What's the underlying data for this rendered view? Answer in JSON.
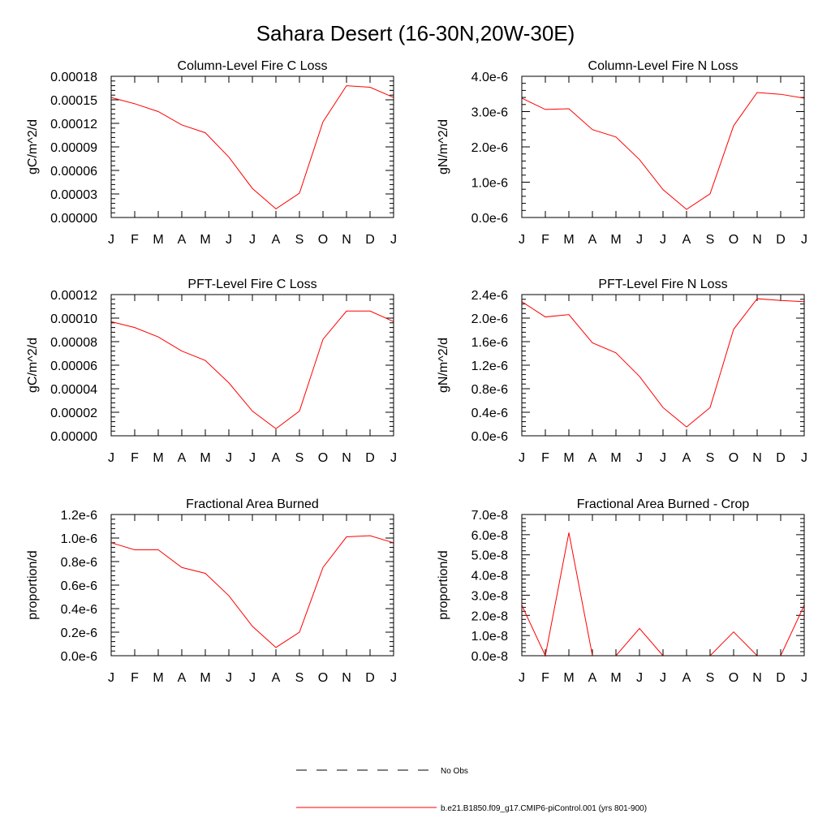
{
  "main_title": "Sahara Desert (16-30N,20W-30E)",
  "colors": {
    "series": "#ff0000",
    "axis": "#000000",
    "background": "#ffffff"
  },
  "legend": {
    "entries": [
      {
        "label": "No Obs",
        "style": "dashed",
        "color": "#000000"
      },
      {
        "label": "b.e21.B1850.f09_g17.CMIP6-piControl.001 (yrs 801-900)",
        "style": "solid",
        "color": "#ff0000"
      }
    ]
  },
  "chart_data": [
    {
      "type": "line",
      "title": "Column-Level Fire C Loss",
      "ylabel": "gC/m^2/d",
      "categories": [
        "J",
        "F",
        "M",
        "A",
        "M",
        "J",
        "J",
        "A",
        "S",
        "O",
        "N",
        "D",
        "J"
      ],
      "ylim": [
        0,
        0.00018
      ],
      "yticks": [
        0,
        3e-05,
        6e-05,
        9e-05,
        0.00012,
        0.00015,
        0.00018
      ],
      "ytick_labels": [
        "0.00000",
        "0.00003",
        "0.00006",
        "0.00009",
        "0.00012",
        "0.00015",
        "0.00018"
      ],
      "series": [
        {
          "name": "b.e21.B1850.f09_g17.CMIP6-piControl.001 (yrs 801-900)",
          "values": [
            0.000153,
            0.000145,
            0.000135,
            0.000118,
            0.000108,
            7.7e-05,
            3.7e-05,
            1.1e-05,
            3.1e-05,
            0.000122,
            0.000168,
            0.000166,
            0.000153
          ]
        }
      ]
    },
    {
      "type": "line",
      "title": "Column-Level Fire N Loss",
      "ylabel": "gN/m^2/d",
      "categories": [
        "J",
        "F",
        "M",
        "A",
        "M",
        "J",
        "J",
        "A",
        "S",
        "O",
        "N",
        "D",
        "J"
      ],
      "ylim": [
        0,
        4e-06
      ],
      "yticks": [
        0,
        1e-06,
        2e-06,
        3e-06,
        4e-06
      ],
      "ytick_labels": [
        "0.0e-6",
        "1.0e-6",
        "2.0e-6",
        "3.0e-6",
        "4.0e-6"
      ],
      "series": [
        {
          "name": "b.e21.B1850.f09_g17.CMIP6-piControl.001 (yrs 801-900)",
          "values": [
            3.38e-06,
            3.06e-06,
            3.08e-06,
            2.49e-06,
            2.28e-06,
            1.64e-06,
            7.9e-07,
            2.3e-07,
            6.7e-07,
            2.6e-06,
            3.54e-06,
            3.49e-06,
            3.38e-06
          ]
        }
      ]
    },
    {
      "type": "line",
      "title": "PFT-Level Fire C Loss",
      "ylabel": "gC/m^2/d",
      "categories": [
        "J",
        "F",
        "M",
        "A",
        "M",
        "J",
        "J",
        "A",
        "S",
        "O",
        "N",
        "D",
        "J"
      ],
      "ylim": [
        0,
        0.00012
      ],
      "yticks": [
        0,
        2e-05,
        4e-05,
        6e-05,
        8e-05,
        0.0001,
        0.00012
      ],
      "ytick_labels": [
        "0.00000",
        "0.00002",
        "0.00004",
        "0.00006",
        "0.00008",
        "0.00010",
        "0.00012"
      ],
      "series": [
        {
          "name": "b.e21.B1850.f09_g17.CMIP6-piControl.001 (yrs 801-900)",
          "values": [
            9.7e-05,
            9.2e-05,
            8.4e-05,
            7.2e-05,
            6.4e-05,
            4.5e-05,
            2.1e-05,
            6e-06,
            2.1e-05,
            8.2e-05,
            0.000106,
            0.000106,
            9.7e-05
          ]
        }
      ]
    },
    {
      "type": "line",
      "title": "PFT-Level Fire N Loss",
      "ylabel": "gN/m^2/d",
      "categories": [
        "J",
        "F",
        "M",
        "A",
        "M",
        "J",
        "J",
        "A",
        "S",
        "O",
        "N",
        "D",
        "J"
      ],
      "ylim": [
        0,
        2.4e-06
      ],
      "yticks": [
        0,
        4e-07,
        8e-07,
        1.2e-06,
        1.6e-06,
        2e-06,
        2.4e-06
      ],
      "ytick_labels": [
        "0.0e-6",
        "0.4e-6",
        "0.8e-6",
        "1.2e-6",
        "1.6e-6",
        "2.0e-6",
        "2.4e-6"
      ],
      "series": [
        {
          "name": "b.e21.B1850.f09_g17.CMIP6-piControl.001 (yrs 801-900)",
          "values": [
            2.28e-06,
            2.02e-06,
            2.06e-06,
            1.58e-06,
            1.41e-06,
            1.01e-06,
            4.8e-07,
            1.5e-07,
            4.8e-07,
            1.81e-06,
            2.33e-06,
            2.3e-06,
            2.28e-06
          ]
        }
      ]
    },
    {
      "type": "line",
      "title": "Fractional Area Burned",
      "ylabel": "proportion/d",
      "categories": [
        "J",
        "F",
        "M",
        "A",
        "M",
        "J",
        "J",
        "A",
        "S",
        "O",
        "N",
        "D",
        "J"
      ],
      "ylim": [
        0,
        1.2e-06
      ],
      "yticks": [
        0,
        2e-07,
        4e-07,
        6e-07,
        8e-07,
        1e-06,
        1.2e-06
      ],
      "ytick_labels": [
        "0.0e-6",
        "0.2e-6",
        "0.4e-6",
        "0.6e-6",
        "0.8e-6",
        "1.0e-6",
        "1.2e-6"
      ],
      "series": [
        {
          "name": "b.e21.B1850.f09_g17.CMIP6-piControl.001 (yrs 801-900)",
          "values": [
            9.6e-07,
            9e-07,
            9e-07,
            7.5e-07,
            7e-07,
            5.1e-07,
            2.5e-07,
            7e-08,
            2e-07,
            7.5e-07,
            1.01e-06,
            1.02e-06,
            9.6e-07
          ]
        }
      ]
    },
    {
      "type": "line",
      "title": "Fractional Area Burned - Crop",
      "ylabel": "proportion/d",
      "categories": [
        "J",
        "F",
        "M",
        "A",
        "M",
        "J",
        "J",
        "A",
        "S",
        "O",
        "N",
        "D",
        "J"
      ],
      "ylim": [
        0,
        7e-08
      ],
      "yticks": [
        0,
        1e-08,
        2e-08,
        3e-08,
        4e-08,
        5e-08,
        6e-08,
        7e-08
      ],
      "ytick_labels": [
        "0.0e-8",
        "1.0e-8",
        "2.0e-8",
        "3.0e-8",
        "4.0e-8",
        "5.0e-8",
        "6.0e-8",
        "7.0e-8"
      ],
      "series": [
        {
          "name": "b.e21.B1850.f09_g17.CMIP6-piControl.001 (yrs 801-900)",
          "values": [
            2.5e-08,
            0,
            6.1e-08,
            0,
            0,
            1.35e-08,
            0,
            0,
            0,
            1.18e-08,
            0,
            0,
            2.5e-08
          ]
        }
      ]
    }
  ]
}
